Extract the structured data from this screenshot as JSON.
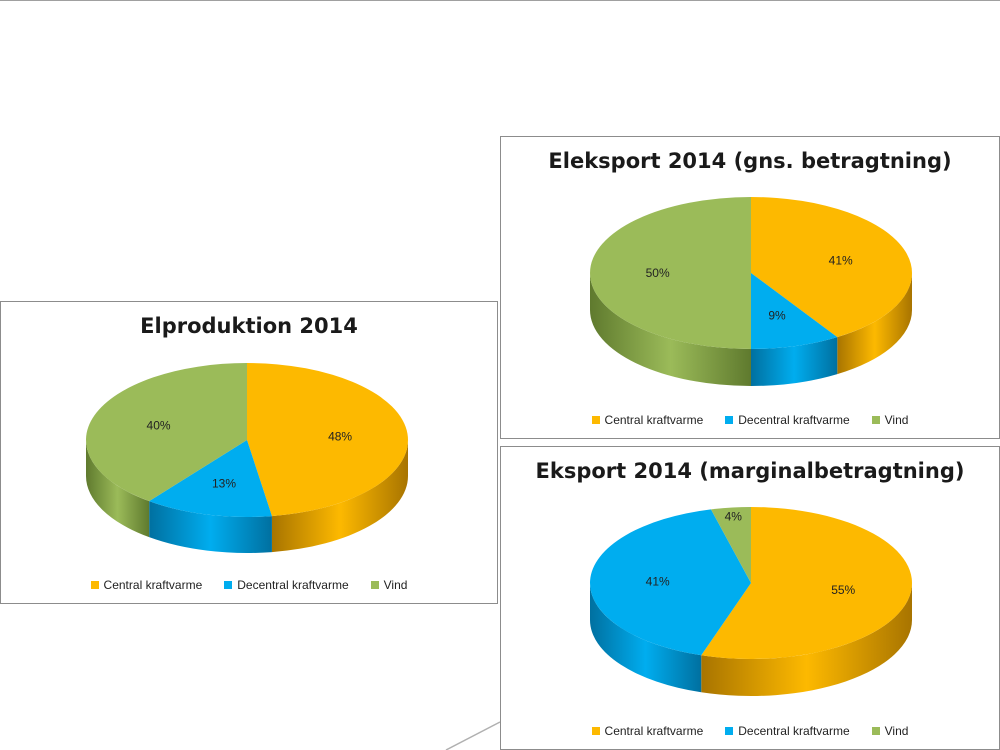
{
  "legend": {
    "entries": [
      {
        "label": "Central kraftvarme",
        "color": "#fdb900"
      },
      {
        "label": "Decentral kraftvarme",
        "color": "#00adef"
      },
      {
        "label": "Vind",
        "color": "#9bbb59"
      }
    ]
  },
  "chart_data": [
    {
      "type": "pie",
      "title": "Elproduktion 2014",
      "categories": [
        "Central kraftvarme",
        "Decentral kraftvarme",
        "Vind"
      ],
      "values": [
        48,
        13,
        40
      ],
      "data_labels": [
        "48%",
        "13%",
        "40%"
      ],
      "legend_position": "bottom",
      "style": "3d"
    },
    {
      "type": "pie",
      "title": "Eleksport 2014 (gns. betragtning)",
      "categories": [
        "Central kraftvarme",
        "Decentral kraftvarme",
        "Vind"
      ],
      "values": [
        41,
        9,
        50
      ],
      "data_labels": [
        "41%",
        "9%",
        "50%"
      ],
      "legend_position": "bottom",
      "style": "3d"
    },
    {
      "type": "pie",
      "title": "Eksport 2014 (marginalbetragtning)",
      "categories": [
        "Central kraftvarme",
        "Decentral kraftvarme",
        "Vind"
      ],
      "values": [
        55,
        41,
        4
      ],
      "data_labels": [
        "55%",
        "41%",
        "4%"
      ],
      "legend_position": "bottom",
      "style": "3d"
    }
  ]
}
